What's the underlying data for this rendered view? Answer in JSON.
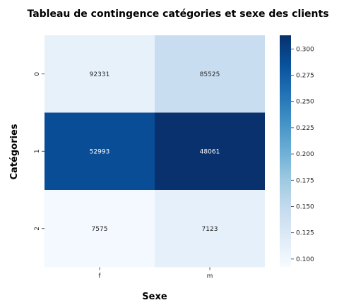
{
  "chart_data": {
    "type": "heatmap",
    "title": "Tableau de contingence catégories et sexe des clients",
    "xlabel": "Sexe",
    "ylabel": "Catégories",
    "x_categories": [
      "f",
      "m"
    ],
    "y_categories": [
      "0",
      "1",
      "2"
    ],
    "cell_labels": [
      [
        "92331",
        "85525"
      ],
      [
        "52993",
        "48061"
      ],
      [
        "7575",
        "7123"
      ]
    ],
    "color_values": [
      [
        0.1105,
        0.145
      ],
      [
        0.289,
        0.312
      ],
      [
        0.0965,
        0.111
      ]
    ],
    "colorbar": {
      "range": [
        0.0925,
        0.313
      ],
      "ticks": [
        "0.100",
        "0.125",
        "0.150",
        "0.175",
        "0.200",
        "0.225",
        "0.250",
        "0.275",
        "0.300"
      ]
    },
    "colormap": [
      "#f7fbff",
      "#deebf7",
      "#c6dbef",
      "#9ecae1",
      "#6baed6",
      "#4292c6",
      "#2171b5",
      "#08519c",
      "#08306b"
    ]
  }
}
